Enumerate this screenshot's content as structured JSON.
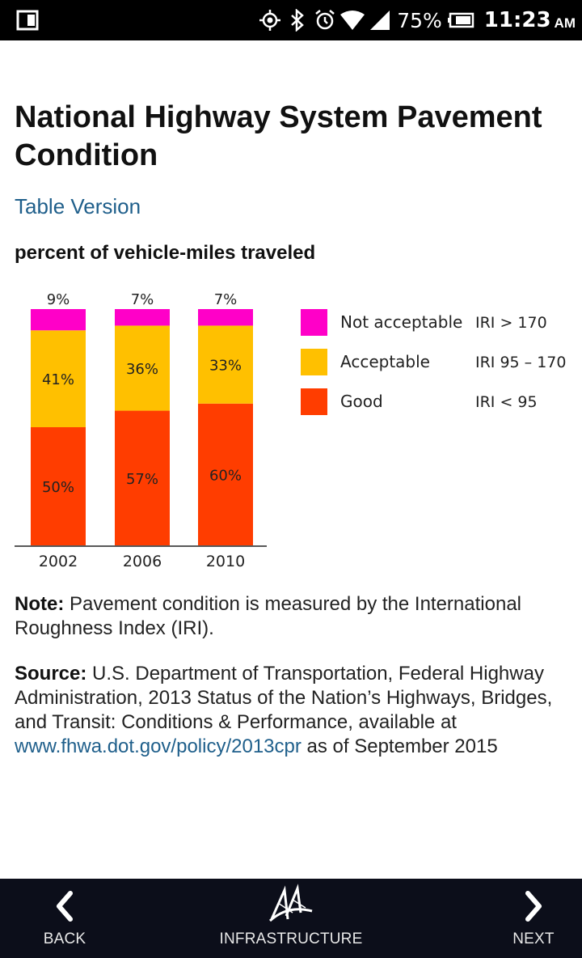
{
  "status_bar": {
    "battery": "75%",
    "time": "11:23",
    "ampm": "AM",
    "icons": [
      "screen-rotate-icon",
      "location-icon",
      "bluetooth-icon",
      "alarm-icon",
      "wifi-icon",
      "signal-icon",
      "battery-icon"
    ]
  },
  "page": {
    "title": "National Highway System Pavement Condition",
    "table_link": "Table Version",
    "note_label": "Note:",
    "note_text": " Pavement condition is measured by the International Roughness Index (IRI).",
    "source_label": "Source:",
    "source_text_before": " U.S. Department of Transportation, Federal Highway Administration, 2013 Status of the Nation’s Highways, Bridges, and Transit: Conditions & Performance, available at ",
    "source_link": "www.fhwa.dot.gov/policy/2013cpr",
    "source_text_after": " as of September 2015"
  },
  "chart_data": {
    "type": "bar",
    "stacked": true,
    "title": "percent of vehicle-miles traveled",
    "categories": [
      "2002",
      "2006",
      "2010"
    ],
    "series": [
      {
        "name": "Good",
        "iri": "IRI < 95",
        "color": "#ff3d00",
        "values": [
          50,
          57,
          60
        ],
        "labels": [
          "50%",
          "57%",
          "60%"
        ]
      },
      {
        "name": "Acceptable",
        "iri": "IRI 95 – 170",
        "color": "#ffc000",
        "values": [
          41,
          36,
          33
        ],
        "labels": [
          "41%",
          "36%",
          "33%"
        ]
      },
      {
        "name": "Not acceptable",
        "iri": "IRI > 170",
        "color": "#ff00c8",
        "values": [
          9,
          7,
          7
        ],
        "labels": [
          "9%",
          "7%",
          "7%"
        ]
      }
    ],
    "ylim": [
      0,
      100
    ],
    "xlabel": "",
    "ylabel": "",
    "legend_order": [
      "Not acceptable",
      "Acceptable",
      "Good"
    ]
  },
  "nav": {
    "back": "BACK",
    "infrastructure": "INFRASTRUCTURE",
    "next": "NEXT"
  }
}
